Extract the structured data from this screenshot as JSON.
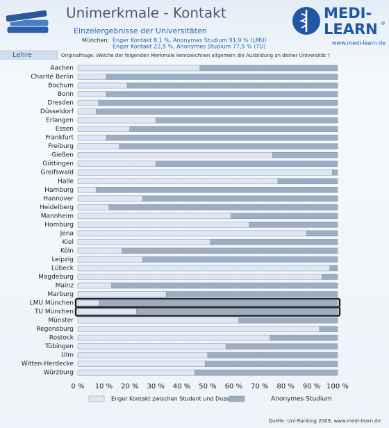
{
  "header": {
    "title": "Unimerkmale - Kontakt",
    "subtitle": "Einzelergebnisse der Universitäten",
    "note_label": "München:",
    "note_lines": [
      "Enger Kontakt 8,1 %, Anonymes Studium 91,9 % (LMU)",
      "Enger Kontakt 22,5 %, Anonymes Studium 77,5 % (TU)"
    ],
    "section": "Lehre",
    "question": "Originalfrage: Welche der folgenden Merkmale kennzeichnen allgemein die Ausbildung an deiner Universität ?",
    "logo_top": "MEDI-",
    "logo_bottom": "LEARN",
    "logo_mark": "®",
    "website": "www.medi-learn.de"
  },
  "chart_data": {
    "type": "bar",
    "orientation": "horizontal",
    "stacked": true,
    "categories": [
      "Aachen",
      "Charité Berlin",
      "Bochum",
      "Bonn",
      "Dresden",
      "Düsseldorf",
      "Erlangen",
      "Essen",
      "Frankfurt",
      "Freiburg",
      "Gießen",
      "Göttingen",
      "Greifswald",
      "Halle",
      "Hamburg",
      "Hannover",
      "Heidelberg",
      "Mannheim",
      "Homburg",
      "Jena",
      "Kiel",
      "Köln",
      "Leipzig",
      "Lübeck",
      "Magdeburg",
      "Mainz",
      "Marburg",
      "LMU München",
      "TU München",
      "Münster",
      "Regensburg",
      "Rostock",
      "Tübingen",
      "Ulm",
      "Witten-Herdecke",
      "Würzburg"
    ],
    "series": [
      {
        "name": "Enger Kontakt zwischen Student und Dozent",
        "color": "#dde8f4",
        "values": [
          47,
          11,
          19,
          11,
          8,
          7,
          30,
          20,
          11,
          16,
          75,
          30,
          98,
          77,
          7,
          25,
          12,
          59,
          66,
          88,
          51,
          17,
          25,
          97,
          94,
          13,
          34,
          8.1,
          22.5,
          62,
          93,
          74,
          57,
          50,
          49,
          45
        ]
      },
      {
        "name": "Anonymes Studium",
        "color": "#9dadc3",
        "values": [
          53,
          89,
          81,
          89,
          92,
          93,
          70,
          80,
          89,
          84,
          25,
          70,
          2,
          23,
          93,
          75,
          88,
          41,
          34,
          12,
          49,
          83,
          75,
          3,
          6,
          87,
          66,
          91.9,
          77.5,
          38,
          7,
          26,
          43,
          50,
          51,
          55
        ]
      }
    ],
    "highlight": [
      27,
      28
    ],
    "xlim": [
      0,
      100
    ],
    "xticks": [
      {
        "value": 0,
        "label": "0 %"
      },
      {
        "value": 10,
        "label": "10 %"
      },
      {
        "value": 20,
        "label": "20 %"
      },
      {
        "value": 30,
        "label": "30 %"
      },
      {
        "value": 40,
        "label": "40 %"
      },
      {
        "value": 50,
        "label": "50 %"
      },
      {
        "value": 60,
        "label": "60 %"
      },
      {
        "value": 70,
        "label": "70 %"
      },
      {
        "value": 80,
        "label": "80 %"
      },
      {
        "value": 90,
        "label": "90 %"
      },
      {
        "value": 100,
        "label": "100 %"
      }
    ],
    "grid": true,
    "source": "Quelle: Uni-Ranking 2009, www.medi-learn.de"
  }
}
